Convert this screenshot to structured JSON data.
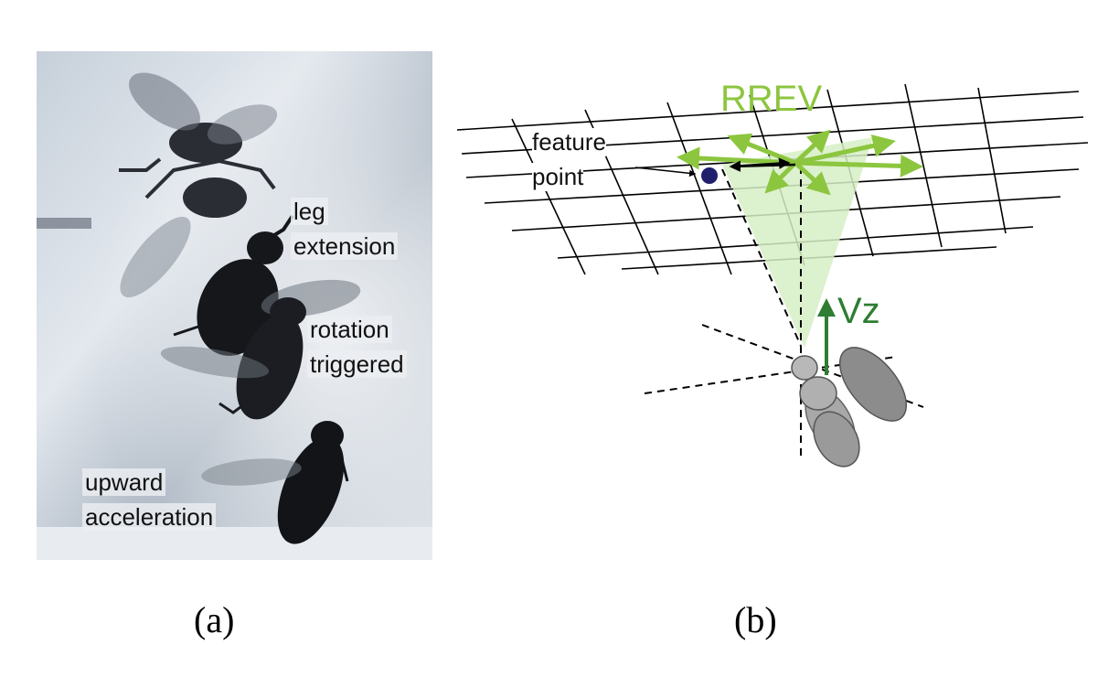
{
  "panel_a": {
    "labels": {
      "leg_extension_1": "leg",
      "leg_extension_2": "extension",
      "rotation_1": "rotation",
      "rotation_2": "triggered",
      "upward_1": "upward",
      "upward_2": "acceleration"
    },
    "caption": "(a)"
  },
  "panel_b": {
    "labels": {
      "rrev": "RREV",
      "feature_1": "feature",
      "feature_2": "point",
      "vz": "Vz"
    },
    "caption": "(b)"
  },
  "colors": {
    "rrev_green": "#8cc63f",
    "vz_green": "#2e7d32",
    "feature_point": "#1f1f6e",
    "cone_fill": "#d6eec4"
  }
}
